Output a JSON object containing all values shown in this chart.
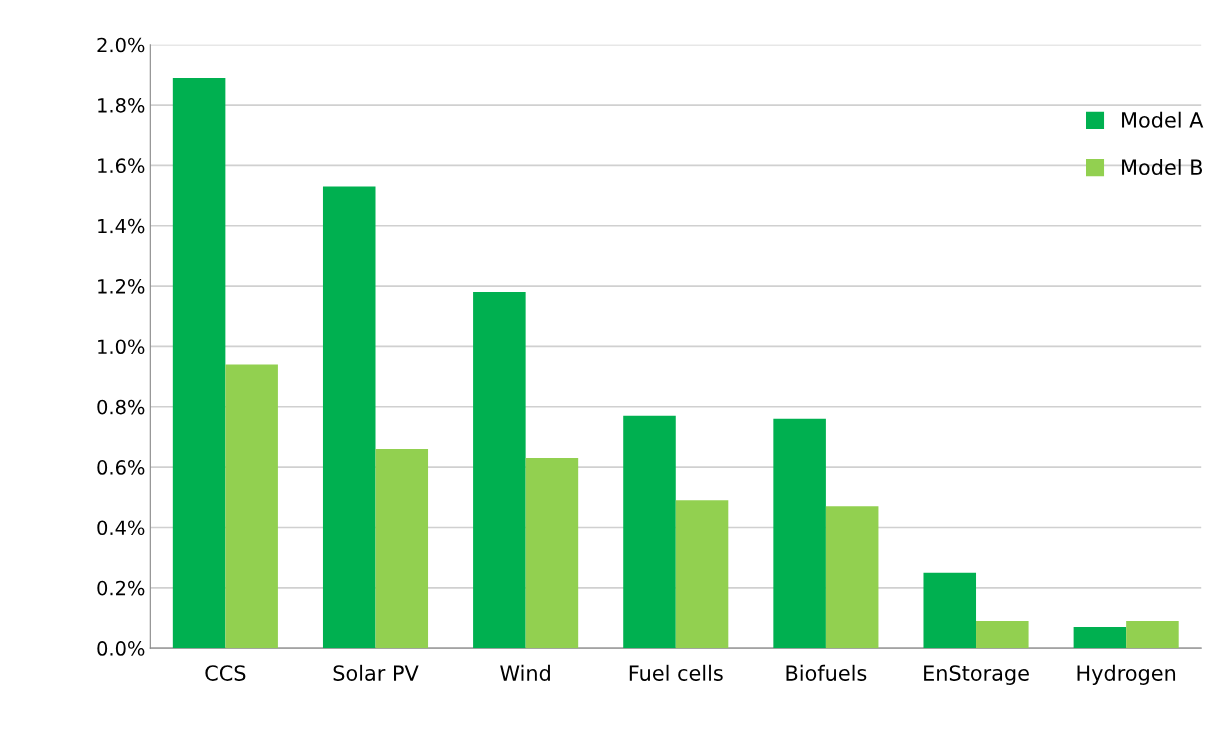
{
  "chart_data": {
    "type": "bar",
    "categories": [
      "CCS",
      "Solar PV",
      "Wind",
      "Fuel cells",
      "Biofuels",
      "EnStorage",
      "Hydrogen"
    ],
    "series": [
      {
        "name": "Model A",
        "color": "#00b050",
        "values": [
          1.89,
          1.53,
          1.18,
          0.77,
          0.76,
          0.25,
          0.07
        ]
      },
      {
        "name": "Model B",
        "color": "#92d050",
        "values": [
          0.94,
          0.66,
          0.63,
          0.49,
          0.47,
          0.09,
          0.09
        ]
      }
    ],
    "ylim": [
      0,
      2.0
    ],
    "yticks": [
      {
        "value": 0,
        "label": "0.0%"
      },
      {
        "value": 0.2,
        "label": "0.2%"
      },
      {
        "value": 0.4,
        "label": "0.4%"
      },
      {
        "value": 0.6,
        "label": "0.6%"
      },
      {
        "value": 0.8,
        "label": "0.8%"
      },
      {
        "value": 1.0,
        "label": "1.0%"
      },
      {
        "value": 1.2,
        "label": "1.2%"
      },
      {
        "value": 1.4,
        "label": "1.4%"
      },
      {
        "value": 1.6,
        "label": "1.6%"
      },
      {
        "value": 1.8,
        "label": "1.8%"
      },
      {
        "value": 2.0,
        "label": "2.0%"
      }
    ],
    "grid": "y",
    "legend": "top right"
  }
}
